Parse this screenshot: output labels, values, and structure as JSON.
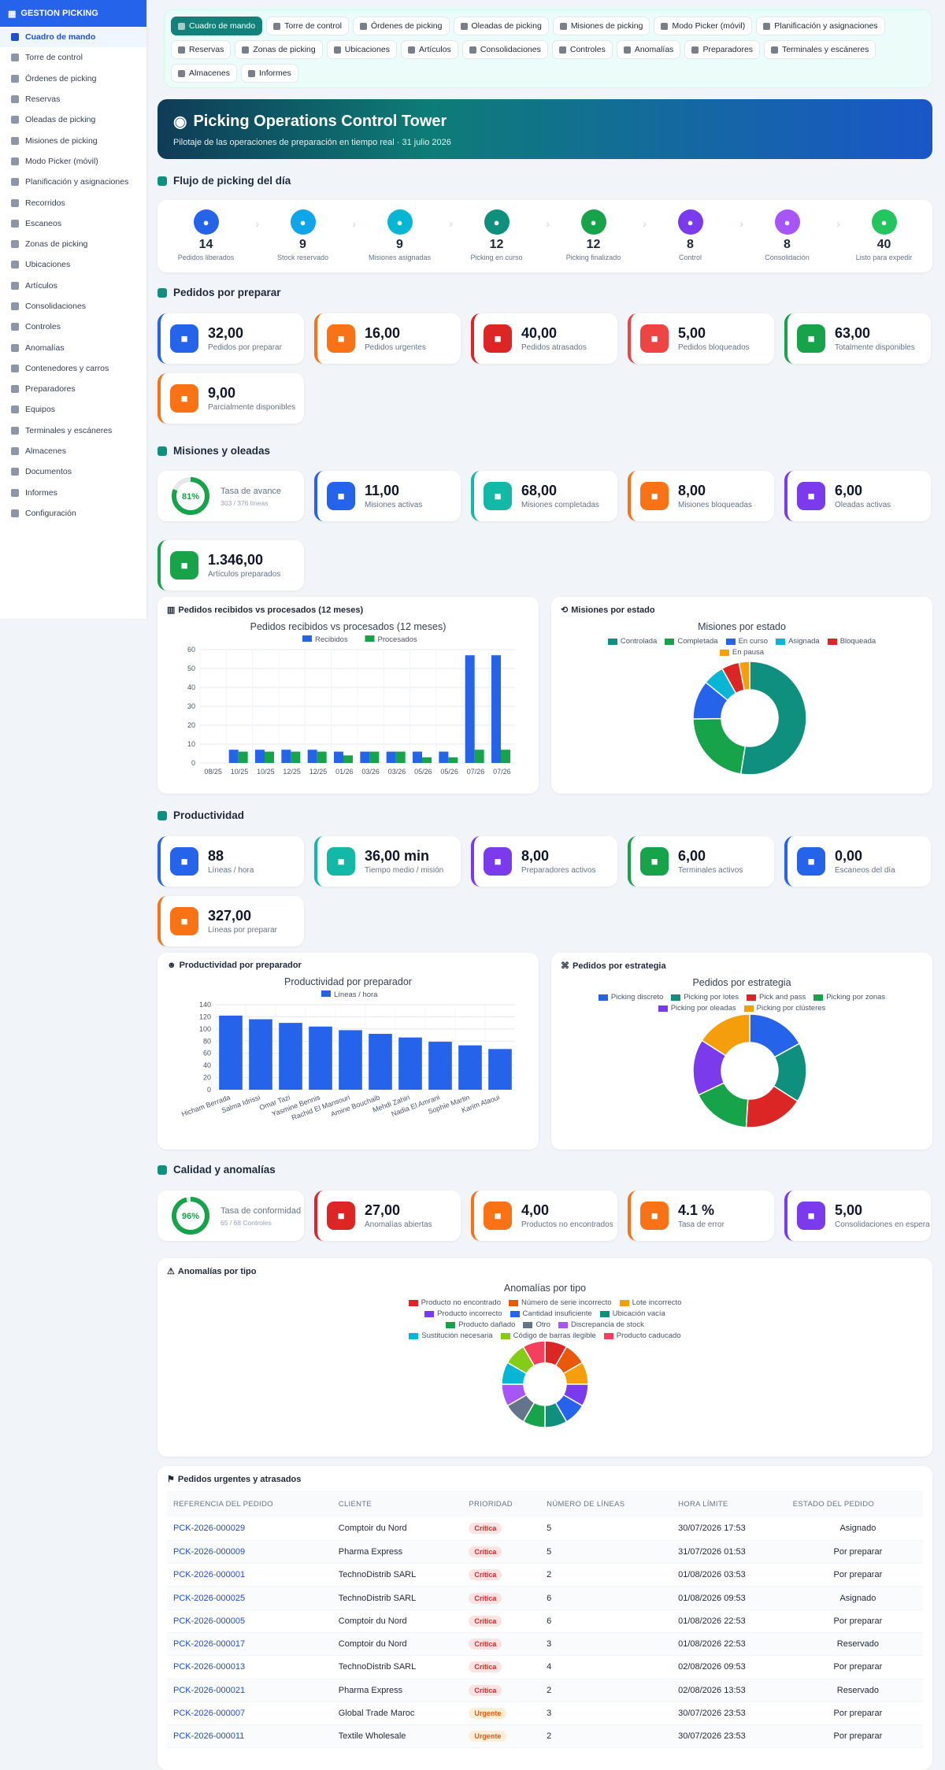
{
  "sidebar": {
    "title": "GESTION PICKING",
    "items": [
      "Cuadro de mando",
      "Torre de control",
      "Órdenes de picking",
      "Reservas",
      "Oleadas de picking",
      "Misiones de picking",
      "Modo Picker (móvil)",
      "Planificación y asignaciones",
      "Recorridos",
      "Escaneos",
      "Zonas de picking",
      "Ubicaciones",
      "Artículos",
      "Consolidaciones",
      "Controles",
      "Anomalías",
      "Contenedores y carros",
      "Preparadores",
      "Equipos",
      "Terminales y escáneres",
      "Almacenes",
      "Documentos",
      "Informes",
      "Configuración"
    ]
  },
  "nav": {
    "pills": [
      "Cuadro de mando",
      "Torre de control",
      "Órdenes de picking",
      "Oleadas de picking",
      "Misiones de picking",
      "Modo Picker (móvil)",
      "Planificación y asignaciones",
      "Reservas",
      "Zonas de picking",
      "Ubicaciones",
      "Artículos",
      "Consolidaciones",
      "Controles",
      "Anomalías",
      "Preparadores",
      "Terminales y escáneres",
      "Almacenes",
      "Informes"
    ]
  },
  "hero": {
    "title": "Picking Operations Control Tower",
    "subtitle": "Pilotaje de las operaciones de preparación en tiempo real · 31 julio 2026"
  },
  "flow": {
    "title": "Flujo de picking del día",
    "steps": [
      {
        "value": "14",
        "label": "Pedidos liberados",
        "color": "#2563eb"
      },
      {
        "value": "9",
        "label": "Stock reservado",
        "color": "#0ea5e9"
      },
      {
        "value": "9",
        "label": "Misiones asignadas",
        "color": "#06b6d4"
      },
      {
        "value": "12",
        "label": "Picking en curso",
        "color": "#0f8f7e"
      },
      {
        "value": "12",
        "label": "Picking finalizado",
        "color": "#16a34a"
      },
      {
        "value": "8",
        "label": "Control",
        "color": "#7c3aed"
      },
      {
        "value": "8",
        "label": "Consolidación",
        "color": "#a855f7"
      },
      {
        "value": "40",
        "label": "Listo para expedir",
        "color": "#22c55e"
      }
    ]
  },
  "pedidos": {
    "title": "Pedidos por preparar",
    "cards": [
      {
        "value": "32,00",
        "label": "Pedidos por preparar",
        "color": "#2563eb"
      },
      {
        "value": "16,00",
        "label": "Pedidos urgentes",
        "color": "#f97316"
      },
      {
        "value": "40,00",
        "label": "Pedidos atrasados",
        "color": "#dc2626"
      },
      {
        "value": "5,00",
        "label": "Pedidos bloqueados",
        "color": "#ef4444"
      },
      {
        "value": "63,00",
        "label": "Totalmente disponibles",
        "color": "#16a34a"
      },
      {
        "value": "9,00",
        "label": "Parcialmente disponibles",
        "color": "#f97316"
      }
    ]
  },
  "misiones": {
    "title": "Misiones y oleadas",
    "rate": {
      "pct": "81%",
      "label": "Tasa de avance",
      "sub": "303 / 376 líneas",
      "value": 0.81
    },
    "cards": [
      {
        "value": "11,00",
        "label": "Misiones activas",
        "color": "#2563eb"
      },
      {
        "value": "68,00",
        "label": "Misiones completadas",
        "color": "#14b8a6"
      },
      {
        "value": "8,00",
        "label": "Misiones bloqueadas",
        "color": "#f97316"
      },
      {
        "value": "6,00",
        "label": "Oleadas activas",
        "color": "#7c3aed"
      },
      {
        "value": "1.346,00",
        "label": "Artículos preparados",
        "color": "#16a34a"
      }
    ]
  },
  "charts": {
    "bar1": {
      "card": "Pedidos recibidos vs procesados (12 meses)",
      "title": "Pedidos recibidos vs procesados (12 meses)"
    },
    "donut1": {
      "card": "Misiones por estado",
      "title": "Misiones por estado"
    },
    "bar2": {
      "card": "Productividad por preparador",
      "title": "Productividad por preparador"
    },
    "donut2": {
      "card": "Pedidos por estrategia",
      "title": "Pedidos por estrategia"
    },
    "donut3": {
      "card": "Anomalías por tipo",
      "title": "Anomalías por tipo"
    }
  },
  "chart_data": [
    {
      "type": "bar",
      "categories": [
        "08/25",
        "10/25",
        "10/25",
        "12/25",
        "12/25",
        "01/26",
        "03/26",
        "03/26",
        "05/26",
        "05/26",
        "07/26",
        "07/26"
      ],
      "series": [
        {
          "name": "Recibidos",
          "color": "#2563eb",
          "values": [
            0,
            7,
            7,
            7,
            7,
            6,
            6,
            6,
            6,
            6,
            57,
            57
          ]
        },
        {
          "name": "Procesados",
          "color": "#16a34a",
          "values": [
            0,
            6,
            6,
            6,
            6,
            4,
            6,
            6,
            3,
            3,
            7,
            7
          ]
        }
      ],
      "ylim": [
        0,
        60
      ],
      "yticks": [
        0,
        10,
        20,
        30,
        40,
        50,
        60
      ]
    },
    {
      "type": "pie",
      "labels": [
        "Controlada",
        "Completada",
        "En curso",
        "Asignada",
        "Bloqueada",
        "En pausa"
      ],
      "values": [
        52,
        22,
        11,
        6,
        5,
        3
      ],
      "colors": [
        "#0f8f7e",
        "#16a34a",
        "#2563eb",
        "#06b6d4",
        "#dc2626",
        "#f59e0b"
      ]
    },
    {
      "type": "bar",
      "categories": [
        "Hicham Berrada",
        "Salma Idrissi",
        "Omar Tazi",
        "Yasmine Bennis",
        "Rachid El Mansouri",
        "Amine Bouchaib",
        "Mehdi Zahiri",
        "Nadia El Amrani",
        "Sophie Martin",
        "Karim Alaoui"
      ],
      "series": [
        {
          "name": "Líneas / hora",
          "color": "#2563eb",
          "values": [
            122,
            116,
            110,
            104,
            98,
            92,
            86,
            79,
            73,
            67
          ]
        }
      ],
      "ylim": [
        0,
        140
      ],
      "yticks": [
        0,
        20,
        40,
        60,
        80,
        100,
        120,
        140
      ]
    },
    {
      "type": "pie",
      "labels": [
        "Picking discreto",
        "Picking por lotes",
        "Pick and pass",
        "Picking por zonas",
        "Picking por oleadas",
        "Picking por clústeres"
      ],
      "values": [
        17,
        17,
        17,
        17,
        16,
        16
      ],
      "colors": [
        "#2563eb",
        "#0f8f7e",
        "#dc2626",
        "#16a34a",
        "#7c3aed",
        "#f59e0b"
      ]
    },
    {
      "type": "pie",
      "labels": [
        "Producto no encontrado",
        "Número de serie incorrecto",
        "Lote incorrecto",
        "Producto incorrecto",
        "Cantidad insuficiente",
        "Ubicación vacía",
        "Producto dañado",
        "Otro",
        "Discrepancia de stock",
        "Sustitución necesaria",
        "Código de barras ilegible",
        "Producto caducado"
      ],
      "values": [
        2,
        2,
        2,
        2,
        2,
        2,
        2,
        2,
        2,
        2,
        2,
        2
      ],
      "colors": [
        "#dc2626",
        "#ea580c",
        "#f59e0b",
        "#7c3aed",
        "#2563eb",
        "#0f8f7e",
        "#16a34a",
        "#64748b",
        "#a855f7",
        "#06b6d4",
        "#84cc16",
        "#f43f5e"
      ]
    }
  ],
  "productividad": {
    "title": "Productividad",
    "cards": [
      {
        "value": "88",
        "label": "Líneas / hora",
        "color": "#2563eb"
      },
      {
        "value": "36,00 min",
        "label": "Tiempo medio / misión",
        "color": "#14b8a6"
      },
      {
        "value": "8,00",
        "label": "Preparadores activos",
        "color": "#7c3aed"
      },
      {
        "value": "6,00",
        "label": "Terminales activos",
        "color": "#16a34a"
      },
      {
        "value": "0,00",
        "label": "Escaneos del día",
        "color": "#2563eb"
      },
      {
        "value": "327,00",
        "label": "Líneas por preparar",
        "color": "#f97316"
      }
    ]
  },
  "calidad": {
    "title": "Calidad y anomalías",
    "rate": {
      "pct": "96%",
      "label": "Tasa de conformidad",
      "sub": "65 / 68 Controles",
      "value": 0.96
    },
    "cards": [
      {
        "value": "27,00",
        "label": "Anomalías abiertas",
        "color": "#dc2626"
      },
      {
        "value": "4,00",
        "label": "Productos no encontrados",
        "color": "#f97316"
      },
      {
        "value": "4.1 %",
        "label": "Tasa de error",
        "color": "#f97316"
      },
      {
        "value": "5,00",
        "label": "Consolidaciones en espera",
        "color": "#7c3aed"
      }
    ]
  },
  "urgentes": {
    "title": "Pedidos urgentes y atrasados",
    "headers": [
      "REFERENCIA DEL PEDIDO",
      "CLIENTE",
      "PRIORIDAD",
      "NÚMERO DE LÍNEAS",
      "HORA LÍMITE",
      "ESTADO DEL PEDIDO"
    ],
    "rows": [
      [
        "PCK-2026-000029",
        "Comptoir du Nord",
        "Crítica",
        "5",
        "30/07/2026 17:53",
        "Asignado"
      ],
      [
        "PCK-2026-000009",
        "Pharma Express",
        "Crítica",
        "5",
        "31/07/2026 01:53",
        "Por preparar"
      ],
      [
        "PCK-2026-000001",
        "TechnoDistrib SARL",
        "Crítica",
        "2",
        "01/08/2026 03:53",
        "Por preparar"
      ],
      [
        "PCK-2026-000025",
        "TechnoDistrib SARL",
        "Crítica",
        "6",
        "01/08/2026 09:53",
        "Asignado"
      ],
      [
        "PCK-2026-000005",
        "Comptoir du Nord",
        "Crítica",
        "6",
        "01/08/2026 22:53",
        "Por preparar"
      ],
      [
        "PCK-2026-000017",
        "Comptoir du Nord",
        "Crítica",
        "3",
        "01/08/2026 22:53",
        "Reservado"
      ],
      [
        "PCK-2026-000013",
        "TechnoDistrib SARL",
        "Crítica",
        "4",
        "02/08/2026 09:53",
        "Por preparar"
      ],
      [
        "PCK-2026-000021",
        "Pharma Express",
        "Crítica",
        "2",
        "02/08/2026 13:53",
        "Reservado"
      ],
      [
        "PCK-2026-000007",
        "Global Trade Maroc",
        "Urgente",
        "3",
        "30/07/2026 23:53",
        "Por preparar"
      ],
      [
        "PCK-2026-000011",
        "Textile Wholesale",
        "Urgente",
        "2",
        "30/07/2026 23:53",
        "Por preparar"
      ]
    ]
  }
}
